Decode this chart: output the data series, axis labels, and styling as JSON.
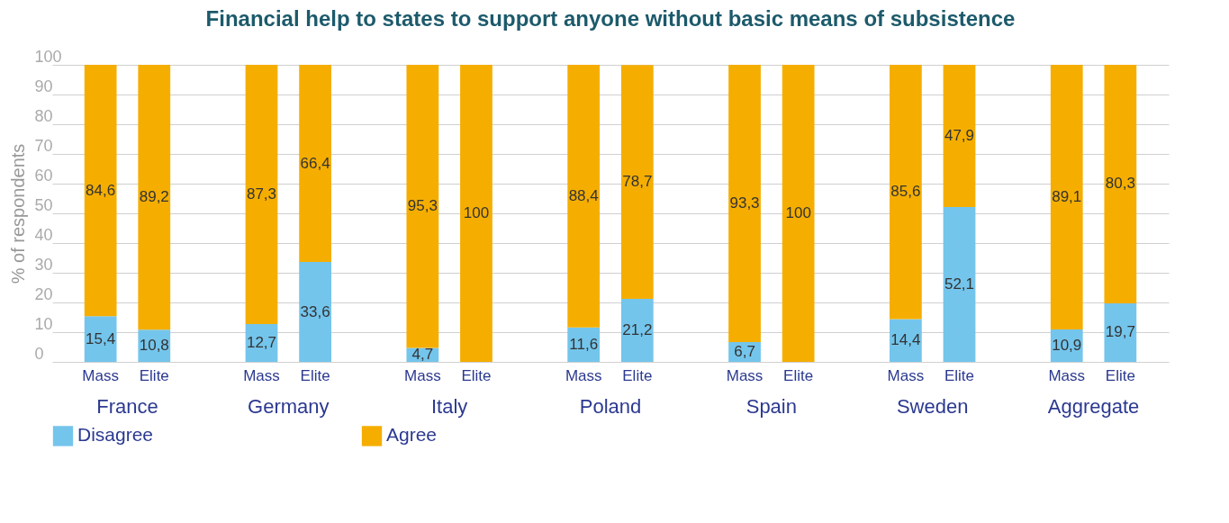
{
  "chart_data": {
    "type": "bar",
    "title": "Financial help to states to support anyone without basic means of subsistence",
    "ylabel": "% of respondents",
    "categories": [
      "Mass",
      "Elite",
      "Mass",
      "Elite",
      "Mass",
      "Elite",
      "Mass",
      "Elite",
      "Mass",
      "Elite",
      "Mass",
      "Elite",
      "Mass",
      "Elite"
    ],
    "annotations": [
      "France",
      "Germany",
      "Italy",
      "Poland",
      "Spain",
      "Sweden",
      "Aggregate"
    ],
    "stacked": true,
    "series": [
      {
        "name": "Disagree",
        "color": "#74c5ec",
        "values": [
          15.4,
          10.8,
          12.7,
          33.6,
          4.7,
          0,
          11.6,
          21.2,
          6.7,
          0,
          14.4,
          52.1,
          10.9,
          19.7
        ],
        "value_labels": [
          "15,4",
          "10,8",
          "12,7",
          "33,6",
          "4,7",
          null,
          "11,6",
          "21,2",
          "6,7",
          null,
          "14,4",
          "52,1",
          "10,9",
          "19,7"
        ]
      },
      {
        "name": "Agree",
        "color": "#f5ae00",
        "values": [
          84.6,
          89.2,
          87.3,
          66.4,
          95.3,
          100,
          88.4,
          78.7,
          93.3,
          100,
          85.6,
          47.9,
          89.1,
          80.3
        ],
        "value_labels": [
          "84,6",
          "89,2",
          "87,3",
          "66,4",
          "95,3",
          "100",
          "88,4",
          "78,7",
          "93,3",
          "100",
          "85,6",
          "47,9",
          "89,1",
          "80,3"
        ]
      }
    ],
    "ylim": [
      0,
      100
    ],
    "yticks": [
      0,
      10,
      20,
      30,
      40,
      50,
      60,
      70,
      80,
      90,
      100
    ],
    "grid": "y",
    "legend": "bottom"
  }
}
